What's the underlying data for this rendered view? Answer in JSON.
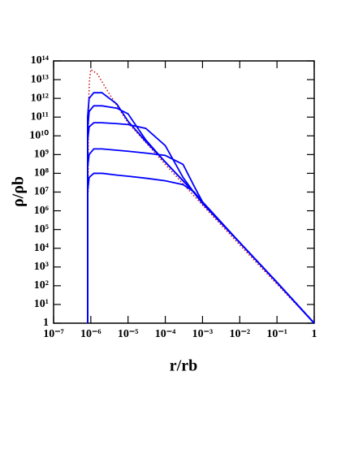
{
  "chart_data": {
    "type": "line",
    "xlabel": "r/rb",
    "ylabel": "ρ/ρb",
    "xscale": "log",
    "yscale": "log",
    "xlim": [
      1e-07,
      1
    ],
    "ylim": [
      1,
      100000000000000.0
    ],
    "xticks": [
      {
        "value": 1e-07,
        "label": "10⁻⁷"
      },
      {
        "value": 1e-06,
        "label": "10⁻⁶"
      },
      {
        "value": 1e-05,
        "label": "10⁻⁵"
      },
      {
        "value": 0.0001,
        "label": "10⁻⁴"
      },
      {
        "value": 0.001,
        "label": "10⁻³"
      },
      {
        "value": 0.01,
        "label": "10⁻²"
      },
      {
        "value": 0.1,
        "label": "10⁻¹"
      },
      1
    ],
    "yticks": [
      1,
      {
        "value": 10.0,
        "label": "10¹"
      },
      {
        "value": 100.0,
        "label": "10²"
      },
      {
        "value": 1000.0,
        "label": "10³"
      },
      {
        "value": 10000.0,
        "label": "10⁴"
      },
      {
        "value": 100000.0,
        "label": "10⁵"
      },
      {
        "value": 1000000.0,
        "label": "10⁶"
      },
      {
        "value": 10000000.0,
        "label": "10⁷"
      },
      {
        "value": 100000000.0,
        "label": "10⁸"
      },
      {
        "value": 1000000000.0,
        "label": "10⁹"
      },
      {
        "value": 10000000000.0,
        "label": "10¹⁰"
      },
      {
        "value": 100000000000.0,
        "label": "10¹¹"
      },
      {
        "value": 1000000000000.0,
        "label": "10¹²"
      },
      {
        "value": 10000000000000.0,
        "label": "10¹³"
      },
      {
        "value": 100000000000000.0,
        "label": "10¹⁴"
      }
    ],
    "series": [
      {
        "color": "#cc0000",
        "style": "dotted",
        "x": [
          8.5e-07,
          8.6e-07,
          8.8e-07,
          9.2e-07,
          1e-06,
          1.5e-06,
          3e-06,
          1e-05,
          0.0001,
          0.001,
          0.01,
          0.1,
          1
        ],
        "values": [
          10000000.0,
          10000000000.0,
          1000000000000.0,
          10000000000000.0,
          35000000000000.0,
          20000000000000.0,
          2000000000000.0,
          50000000000.0,
          300000000.0,
          2000000.0,
          15000.0,
          120.0,
          1
        ]
      },
      {
        "color": "#0000ff",
        "style": "solid",
        "x": [
          8.2e-07,
          8.2e-07,
          9e-07,
          1.2e-06,
          2e-06,
          5e-06,
          1e-05,
          3e-05,
          0.0001,
          0.0003,
          0.0006,
          0.001,
          0.01,
          0.1,
          1
        ],
        "values": [
          1,
          100000000000.0,
          1000000000000.0,
          2000000000000.0,
          2000000000000.0,
          500000000000.0,
          60000000000.0,
          5000000000.0,
          400000000.0,
          40000000.0,
          9000000.0,
          2500000.0,
          20000.0,
          150.0,
          1
        ]
      },
      {
        "color": "#0000ff",
        "style": "solid",
        "x": [
          8.2e-07,
          8.2e-07,
          9e-07,
          1.2e-06,
          2e-06,
          5e-06,
          1e-05,
          3e-05,
          0.0001,
          0.0003,
          0.0006,
          0.001,
          0.01,
          0.1,
          1
        ],
        "values": [
          1,
          20000000000.0,
          200000000000.0,
          400000000000.0,
          400000000000.0,
          300000000000.0,
          150000000000.0,
          6000000000.0,
          400000000.0,
          40000000.0,
          9000000.0,
          2500000.0,
          20000.0,
          150.0,
          1
        ]
      },
      {
        "color": "#0000ff",
        "style": "solid",
        "x": [
          8.2e-07,
          8.2e-07,
          9e-07,
          1.2e-06,
          2e-06,
          5e-06,
          1e-05,
          3e-05,
          0.0001,
          0.0003,
          0.0006,
          0.001,
          0.01,
          0.1,
          1
        ],
        "values": [
          1,
          5000000000.0,
          30000000000.0,
          50000000000.0,
          50000000000.0,
          45000000000.0,
          40000000000.0,
          25000000000.0,
          3000000000.0,
          60000000.0,
          9000000.0,
          2500000.0,
          20000.0,
          150.0,
          1
        ]
      },
      {
        "color": "#0000ff",
        "style": "solid",
        "x": [
          8.2e-07,
          8.2e-07,
          9e-07,
          1.2e-06,
          2e-06,
          5e-06,
          1e-05,
          3e-05,
          0.0001,
          0.0003,
          0.0006,
          0.001,
          0.01,
          0.1,
          1
        ],
        "values": [
          1,
          200000000.0,
          1000000000.0,
          2000000000.0,
          2000000000.0,
          1700000000.0,
          1500000000.0,
          1200000000.0,
          900000000.0,
          300000000.0,
          20000000.0,
          3000000.0,
          20000.0,
          150.0,
          1
        ]
      },
      {
        "color": "#0000ff",
        "style": "solid",
        "x": [
          8.2e-07,
          8.2e-07,
          9e-07,
          1.2e-06,
          2e-06,
          5e-06,
          1e-05,
          3e-05,
          0.0001,
          0.0003,
          0.0006,
          0.001,
          0.01,
          0.1,
          1
        ],
        "values": [
          1,
          10000000.0,
          60000000.0,
          100000000.0,
          100000000.0,
          80000000.0,
          70000000.0,
          55000000.0,
          40000000.0,
          25000000.0,
          10000000.0,
          3000000.0,
          20000.0,
          150.0,
          1
        ]
      }
    ]
  }
}
